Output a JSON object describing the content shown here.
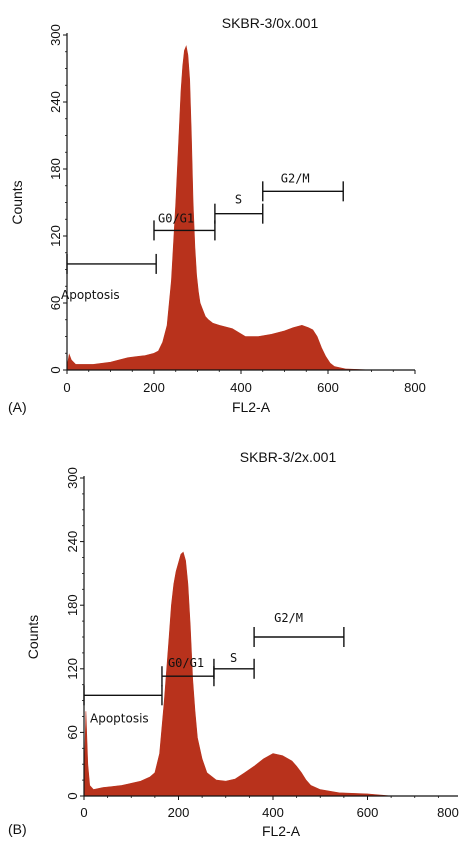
{
  "chart_data": [
    {
      "type": "area",
      "panel": "(A)",
      "title": "SKBR-3/0x.001",
      "xlabel": "FL2-A",
      "ylabel": "Counts",
      "xlim": [
        0,
        800
      ],
      "ylim": [
        0,
        300
      ],
      "x_ticks": [
        "0",
        "200",
        "400",
        "600",
        "800"
      ],
      "y_ticks": [
        "0",
        "60",
        "120",
        "180",
        "240",
        "300"
      ],
      "color": "#b8321c",
      "series": [
        {
          "x": [
            0,
            5,
            10,
            20,
            40,
            60,
            80,
            100,
            120,
            140,
            160,
            180,
            200,
            210,
            220,
            230,
            240,
            250,
            258,
            262,
            266,
            270,
            274,
            278,
            282,
            286,
            290,
            294,
            298,
            302,
            306,
            312,
            318,
            325,
            335,
            350,
            380,
            410,
            440,
            470,
            500,
            520,
            540,
            555,
            565,
            575,
            585,
            595,
            605,
            615,
            640,
            700,
            800
          ],
          "y": [
            3,
            14,
            9,
            5,
            5,
            5,
            6,
            7,
            9,
            11,
            12,
            13,
            15,
            17,
            25,
            40,
            80,
            150,
            215,
            250,
            272,
            286,
            290,
            282,
            260,
            210,
            150,
            110,
            85,
            70,
            60,
            54,
            48,
            45,
            42,
            40,
            37,
            30,
            30,
            32,
            35,
            38,
            40,
            38,
            36,
            30,
            20,
            12,
            6,
            3,
            1,
            0,
            0
          ]
        }
      ],
      "gates": [
        {
          "label": "Apoptosis",
          "x1": 0,
          "x2": 205,
          "y": 95
        },
        {
          "label": "G0/G1",
          "x1": 200,
          "x2": 340,
          "y": 125
        },
        {
          "label": "S",
          "x1": 340,
          "x2": 450,
          "y": 140
        },
        {
          "label": "G2/M",
          "x1": 450,
          "x2": 635,
          "y": 160
        }
      ]
    },
    {
      "type": "area",
      "panel": "(B)",
      "title": "SKBR-3/2x.001",
      "xlabel": "FL2-A",
      "ylabel": "Counts",
      "xlim": [
        0,
        800
      ],
      "ylim": [
        0,
        300
      ],
      "x_ticks": [
        "0",
        "200",
        "400",
        "600",
        "800"
      ],
      "y_ticks": [
        "0",
        "60",
        "120",
        "180",
        "240",
        "300"
      ],
      "color": "#b8321c",
      "series": [
        {
          "x": [
            0,
            4,
            8,
            12,
            20,
            40,
            60,
            80,
            100,
            120,
            140,
            150,
            160,
            170,
            180,
            185,
            190,
            195,
            200,
            205,
            210,
            215,
            220,
            225,
            230,
            235,
            240,
            250,
            260,
            280,
            300,
            320,
            340,
            360,
            380,
            400,
            420,
            440,
            450,
            460,
            470,
            480,
            500,
            540,
            600,
            650,
            800
          ],
          "y": [
            10,
            80,
            30,
            10,
            6,
            8,
            9,
            10,
            12,
            14,
            18,
            22,
            40,
            90,
            150,
            180,
            200,
            212,
            220,
            228,
            230,
            222,
            200,
            160,
            110,
            80,
            55,
            35,
            22,
            15,
            14,
            16,
            22,
            28,
            35,
            40,
            38,
            33,
            28,
            22,
            15,
            10,
            6,
            3,
            2,
            0,
            0
          ]
        }
      ],
      "gates": [
        {
          "label": "Apoptosis",
          "x1": 0,
          "x2": 165,
          "y": 95
        },
        {
          "label": "G0/G1",
          "x1": 165,
          "x2": 275,
          "y": 113
        },
        {
          "label": "S",
          "x1": 275,
          "x2": 360,
          "y": 120
        },
        {
          "label": "G2/M",
          "x1": 360,
          "x2": 550,
          "y": 150
        }
      ]
    }
  ]
}
